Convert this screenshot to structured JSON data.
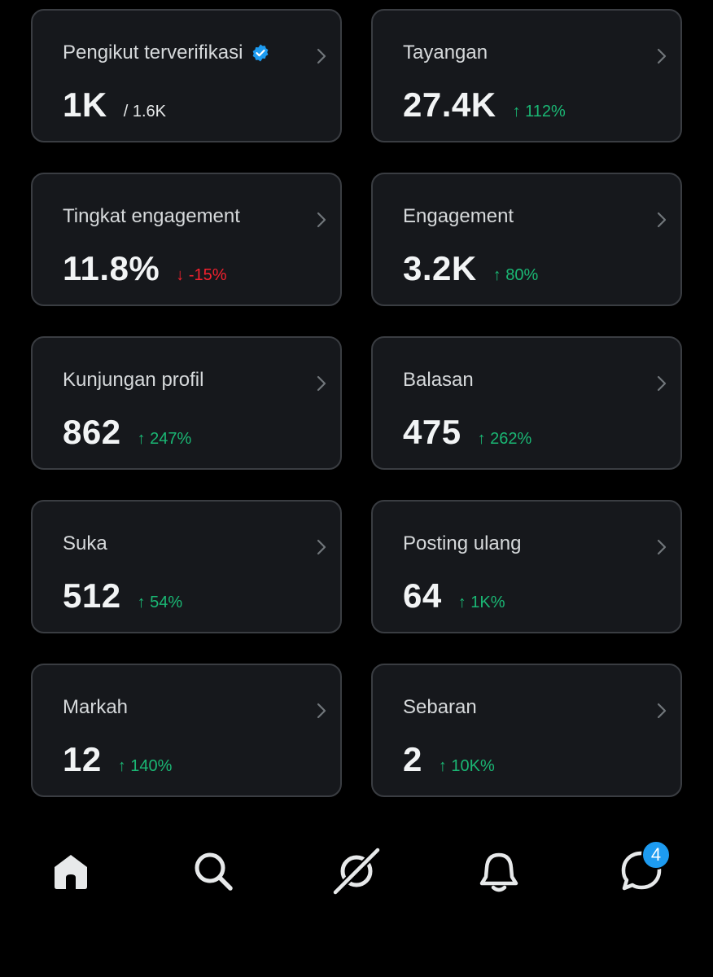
{
  "colors": {
    "background": "#000000",
    "card_bg": "#16181c",
    "card_border": "#3a3d42",
    "up": "#1ab774",
    "down": "#f4212e",
    "accent": "#1d9bf0"
  },
  "cards": [
    {
      "title": "Pengikut terverifikasi",
      "value": "1K",
      "sub": "/ 1.6K",
      "verified_icon": "verified-badge-icon"
    },
    {
      "title": "Tayangan",
      "value": "27.4K",
      "delta": "↑ 112%",
      "direction": "up"
    },
    {
      "title": "Tingkat engagement",
      "value": "11.8%",
      "delta": "↓ -15%",
      "direction": "down"
    },
    {
      "title": "Engagement",
      "value": "3.2K",
      "delta": "↑ 80%",
      "direction": "up"
    },
    {
      "title": "Kunjungan profil",
      "value": "862",
      "delta": "↑ 247%",
      "direction": "up"
    },
    {
      "title": "Balasan",
      "value": "475",
      "delta": "↑ 262%",
      "direction": "up"
    },
    {
      "title": "Suka",
      "value": "512",
      "delta": "↑ 54%",
      "direction": "up"
    },
    {
      "title": "Posting ulang",
      "value": "64",
      "delta": "↑ 1K%",
      "direction": "up"
    },
    {
      "title": "Markah",
      "value": "12",
      "delta": "↑ 140%",
      "direction": "up"
    },
    {
      "title": "Sebaran",
      "value": "2",
      "delta": "↑ 10K%",
      "direction": "up"
    }
  ],
  "nav": {
    "items": [
      "home-icon",
      "search-icon",
      "grok-icon",
      "bell-icon",
      "messages-icon"
    ],
    "messages_badge": "4"
  }
}
